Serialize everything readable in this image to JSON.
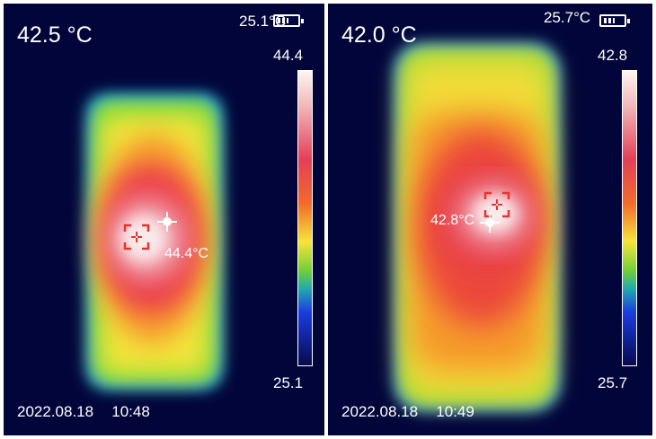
{
  "panels": [
    {
      "center_temp": "42.5 °C",
      "ambient_temp": "25.1°C",
      "scale_max": "44.4",
      "scale_min": "25.1",
      "spot_temp": "44.4°C",
      "date": "2022.08.18",
      "time": "10:48"
    },
    {
      "center_temp": "42.0 °C",
      "ambient_temp": "25.7°C",
      "scale_max": "42.8",
      "scale_min": "25.7",
      "spot_temp": "42.8°C",
      "date": "2022.08.18",
      "time": "10:49"
    }
  ],
  "colors": {
    "background": "#02053a",
    "text": "#ffffff",
    "reticle": "#e8322e"
  },
  "icons": [
    "battery-icon",
    "crosshair-icon",
    "target-reticle-icon"
  ]
}
